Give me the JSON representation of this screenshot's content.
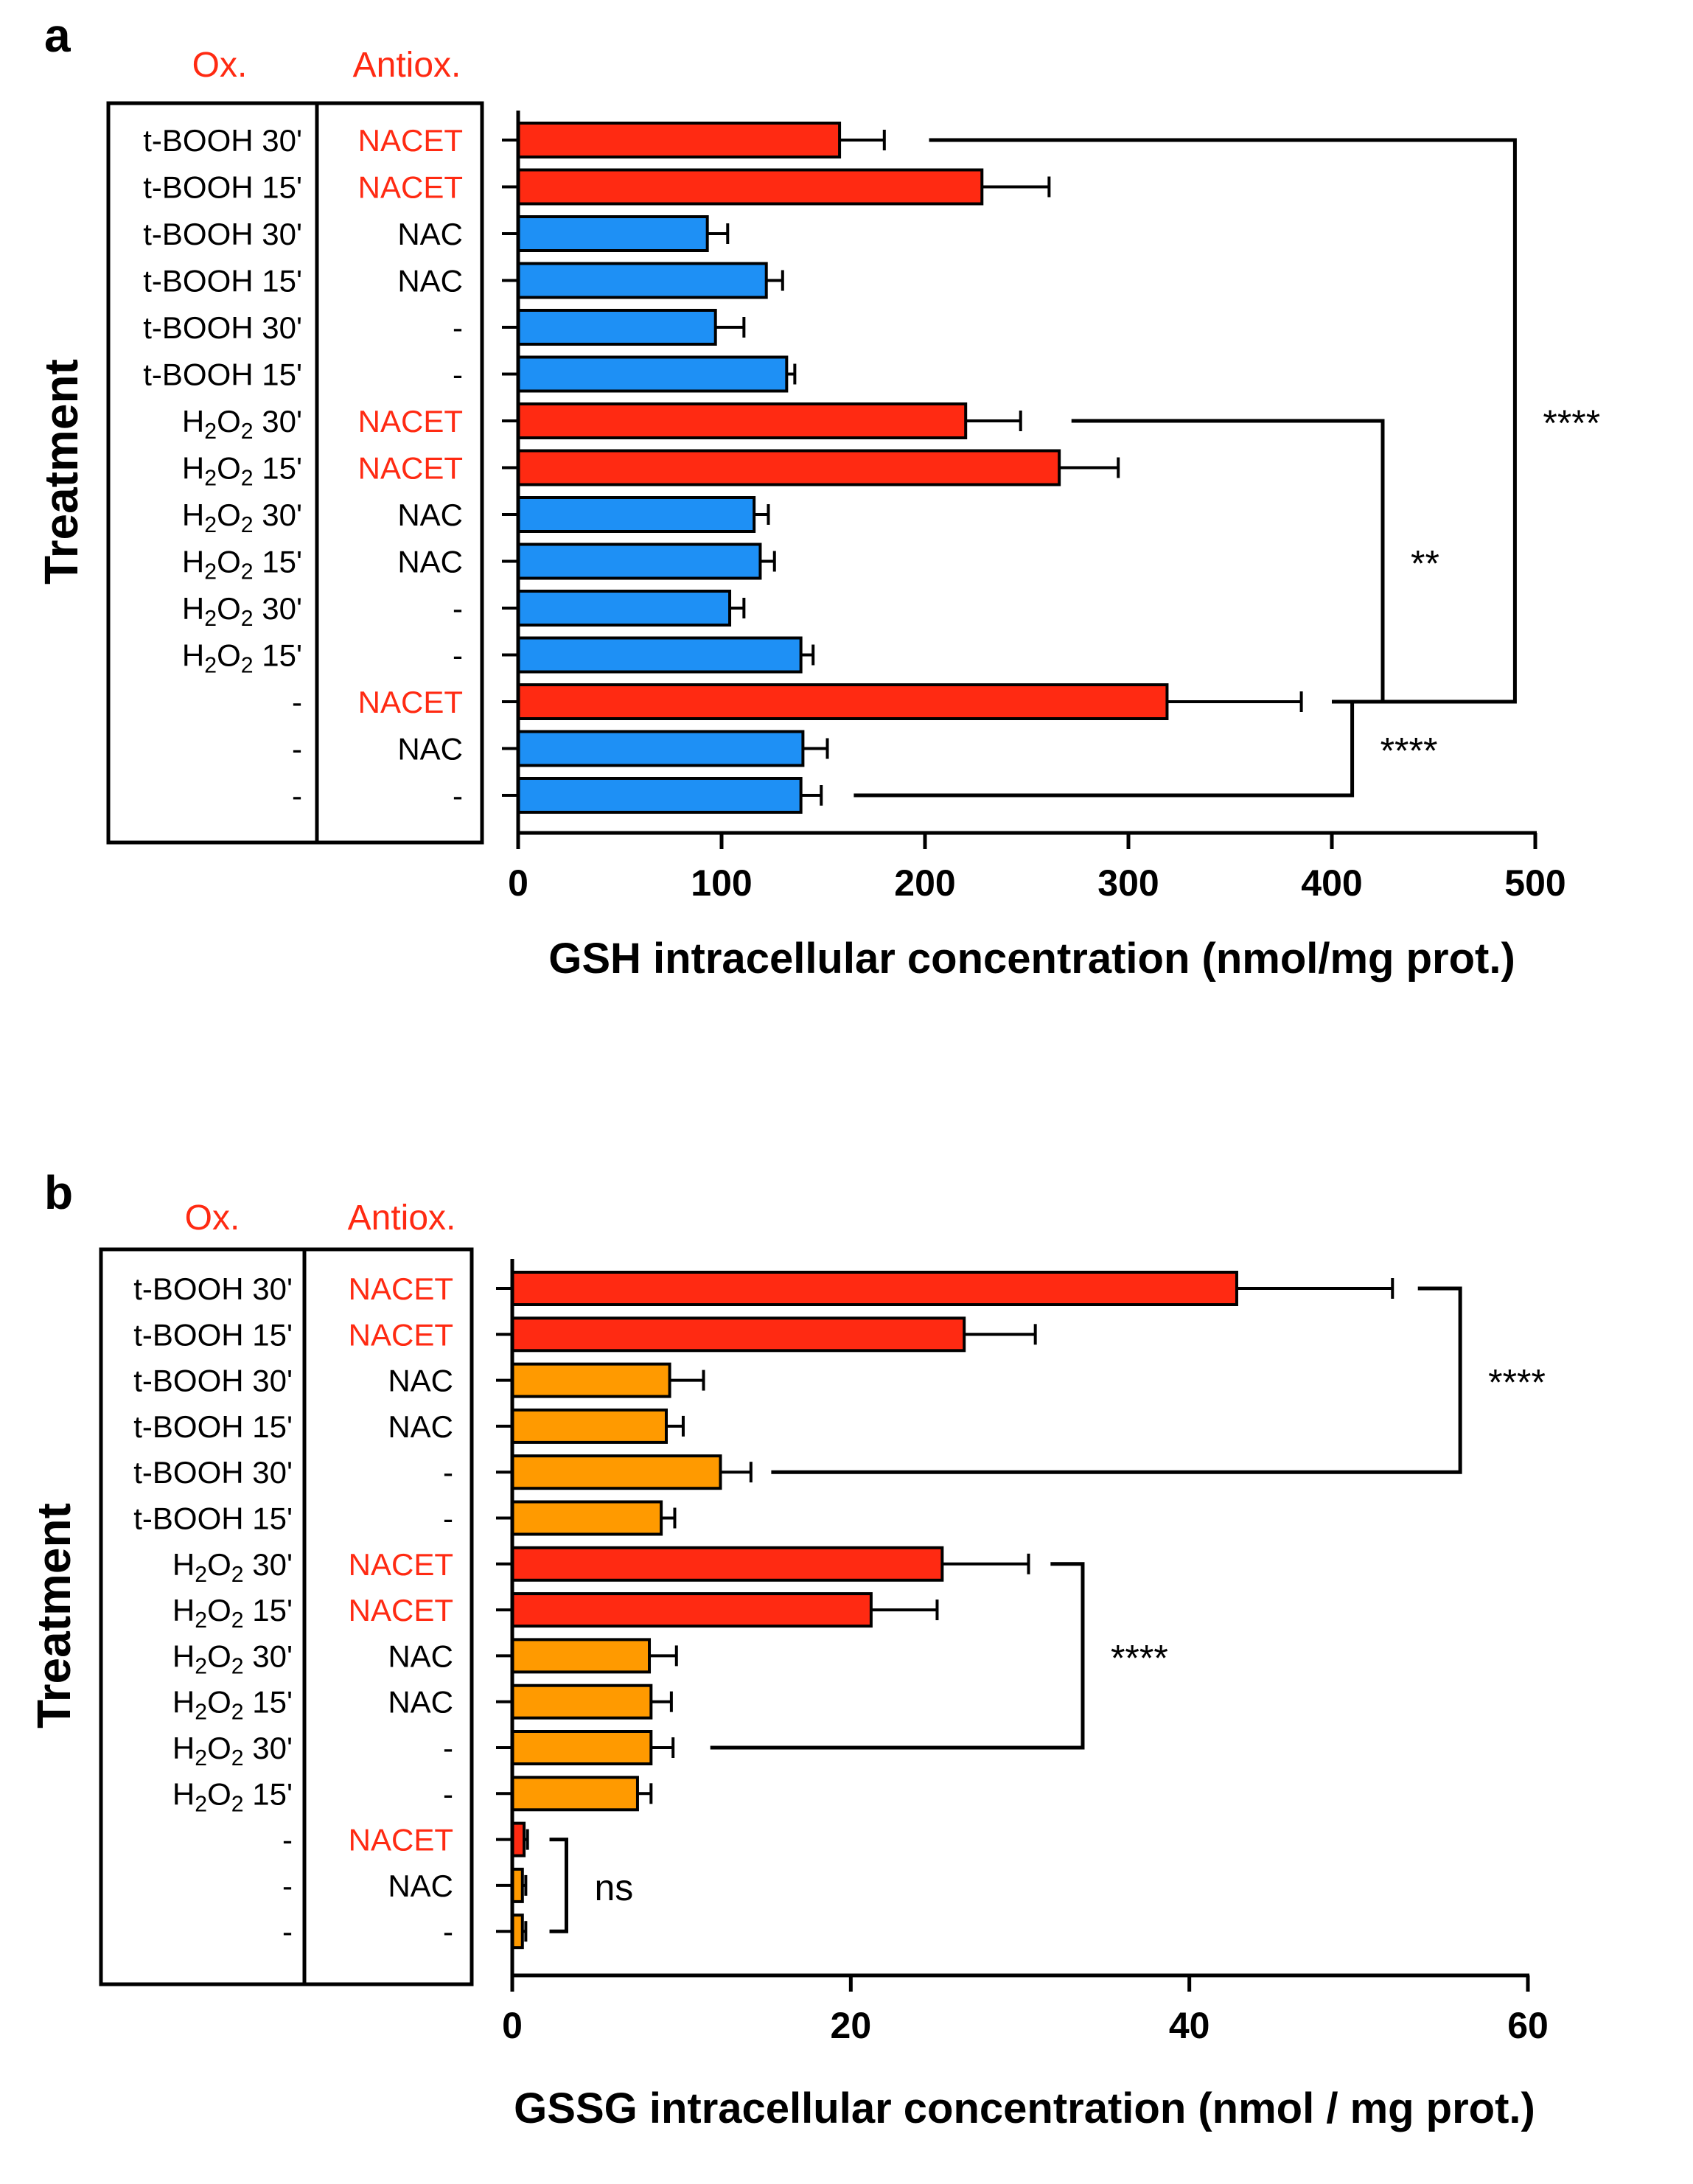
{
  "colors": {
    "nacet": "#FF2A12",
    "panel_a_other": "#1E90F5",
    "panel_b_other": "#FF9A00",
    "header": "#FF2A12",
    "axis": "#000000"
  },
  "chart_data": [
    {
      "type": "bar",
      "orientation": "horizontal",
      "panel_letter": "a",
      "header_ox": "Ox.",
      "header_antiox": "Antiox.",
      "ylabel": "Treatment",
      "xlabel": "GSH intracellular concentration (nmol/mg prot.)",
      "xlim": [
        0,
        500
      ],
      "xticks": [
        0,
        100,
        200,
        300,
        400,
        500
      ],
      "rows": [
        {
          "ox": "t-BOOH 30'",
          "antiox": "NACET",
          "value": 158,
          "err": 22,
          "group": "nacet"
        },
        {
          "ox": "t-BOOH 15'",
          "antiox": "NACET",
          "value": 228,
          "err": 33,
          "group": "nacet"
        },
        {
          "ox": "t-BOOH 30'",
          "antiox": "NAC",
          "value": 93,
          "err": 10,
          "group": "other"
        },
        {
          "ox": "t-BOOH 15'",
          "antiox": "NAC",
          "value": 122,
          "err": 8,
          "group": "other"
        },
        {
          "ox": "t-BOOH 30'",
          "antiox": "-",
          "value": 97,
          "err": 14,
          "group": "other"
        },
        {
          "ox": "t-BOOH 15'",
          "antiox": "-",
          "value": 132,
          "err": 4,
          "group": "other"
        },
        {
          "ox": "H2O2 30'",
          "antiox": "NACET",
          "value": 220,
          "err": 27,
          "group": "nacet"
        },
        {
          "ox": "H2O2 15'",
          "antiox": "NACET",
          "value": 266,
          "err": 29,
          "group": "nacet"
        },
        {
          "ox": "H2O2 30'",
          "antiox": "NAC",
          "value": 116,
          "err": 7,
          "group": "other"
        },
        {
          "ox": "H2O2 15'",
          "antiox": "NAC",
          "value": 119,
          "err": 7,
          "group": "other"
        },
        {
          "ox": "H2O2 30'",
          "antiox": "-",
          "value": 104,
          "err": 7,
          "group": "other"
        },
        {
          "ox": "H2O2 15'",
          "antiox": "-",
          "value": 139,
          "err": 6,
          "group": "other"
        },
        {
          "ox": "-",
          "antiox": "NACET",
          "value": 319,
          "err": 66,
          "group": "nacet"
        },
        {
          "ox": "-",
          "antiox": "NAC",
          "value": 140,
          "err": 12,
          "group": "other"
        },
        {
          "ox": "-",
          "antiox": "-",
          "value": 139,
          "err": 10,
          "group": "other"
        }
      ],
      "significance": [
        {
          "label": "****",
          "row_top": 0,
          "row_bottom": 12,
          "from_top": 202,
          "from_bottom": 400,
          "bracket_x": 490
        },
        {
          "label": "**",
          "row_top": 6,
          "row_bottom": 12,
          "from_top": 272,
          "from_bottom": 400,
          "bracket_x": 425
        },
        {
          "label": "****",
          "row_top": 12,
          "row_bottom": 14,
          "from_top": 402,
          "from_bottom": 165,
          "bracket_x": 410
        }
      ]
    },
    {
      "type": "bar",
      "orientation": "horizontal",
      "panel_letter": "b",
      "header_ox": "Ox.",
      "header_antiox": "Antiox.",
      "ylabel": "Treatment",
      "xlabel": "GSSG intracellular concentration (nmol / mg prot.)",
      "xlim": [
        0,
        60
      ],
      "xticks": [
        0,
        20,
        40,
        60
      ],
      "rows": [
        {
          "ox": "t-BOOH 30'",
          "antiox": "NACET",
          "value": 42.8,
          "err": 9.2,
          "group": "nacet"
        },
        {
          "ox": "t-BOOH 15'",
          "antiox": "NACET",
          "value": 26.7,
          "err": 4.2,
          "group": "nacet"
        },
        {
          "ox": "t-BOOH 30'",
          "antiox": "NAC",
          "value": 9.3,
          "err": 2.0,
          "group": "other"
        },
        {
          "ox": "t-BOOH 15'",
          "antiox": "NAC",
          "value": 9.1,
          "err": 1.0,
          "group": "other"
        },
        {
          "ox": "t-BOOH 30'",
          "antiox": "-",
          "value": 12.3,
          "err": 1.8,
          "group": "other"
        },
        {
          "ox": "t-BOOH 15'",
          "antiox": "-",
          "value": 8.8,
          "err": 0.8,
          "group": "other"
        },
        {
          "ox": "H2O2 30'",
          "antiox": "NACET",
          "value": 25.4,
          "err": 5.1,
          "group": "nacet"
        },
        {
          "ox": "H2O2 15'",
          "antiox": "NACET",
          "value": 21.2,
          "err": 3.9,
          "group": "nacet"
        },
        {
          "ox": "H2O2 30'",
          "antiox": "NAC",
          "value": 8.1,
          "err": 1.6,
          "group": "other"
        },
        {
          "ox": "H2O2 15'",
          "antiox": "NAC",
          "value": 8.2,
          "err": 1.2,
          "group": "other"
        },
        {
          "ox": "H2O2 30'",
          "antiox": "-",
          "value": 8.2,
          "err": 1.3,
          "group": "other"
        },
        {
          "ox": "H2O2 15'",
          "antiox": "-",
          "value": 7.4,
          "err": 0.8,
          "group": "other"
        },
        {
          "ox": "-",
          "antiox": "NACET",
          "value": 0.7,
          "err": 0.2,
          "group": "nacet"
        },
        {
          "ox": "-",
          "antiox": "NAC",
          "value": 0.6,
          "err": 0.2,
          "group": "other"
        },
        {
          "ox": "-",
          "antiox": "-",
          "value": 0.6,
          "err": 0.2,
          "group": "other"
        }
      ],
      "significance": [
        {
          "label": "****",
          "row_top": 0,
          "row_bottom": 4,
          "from_top": 53.5,
          "from_bottom": 15.3,
          "bracket_x": 56
        },
        {
          "label": "****",
          "row_top": 6,
          "row_bottom": 10,
          "from_top": 31.8,
          "from_bottom": 11.7,
          "bracket_x": 33.7
        },
        {
          "label": "ns",
          "row_top": 12,
          "row_bottom": 14,
          "from_top": 2.2,
          "from_bottom": 2.2,
          "bracket_x": 3.2
        }
      ]
    }
  ]
}
